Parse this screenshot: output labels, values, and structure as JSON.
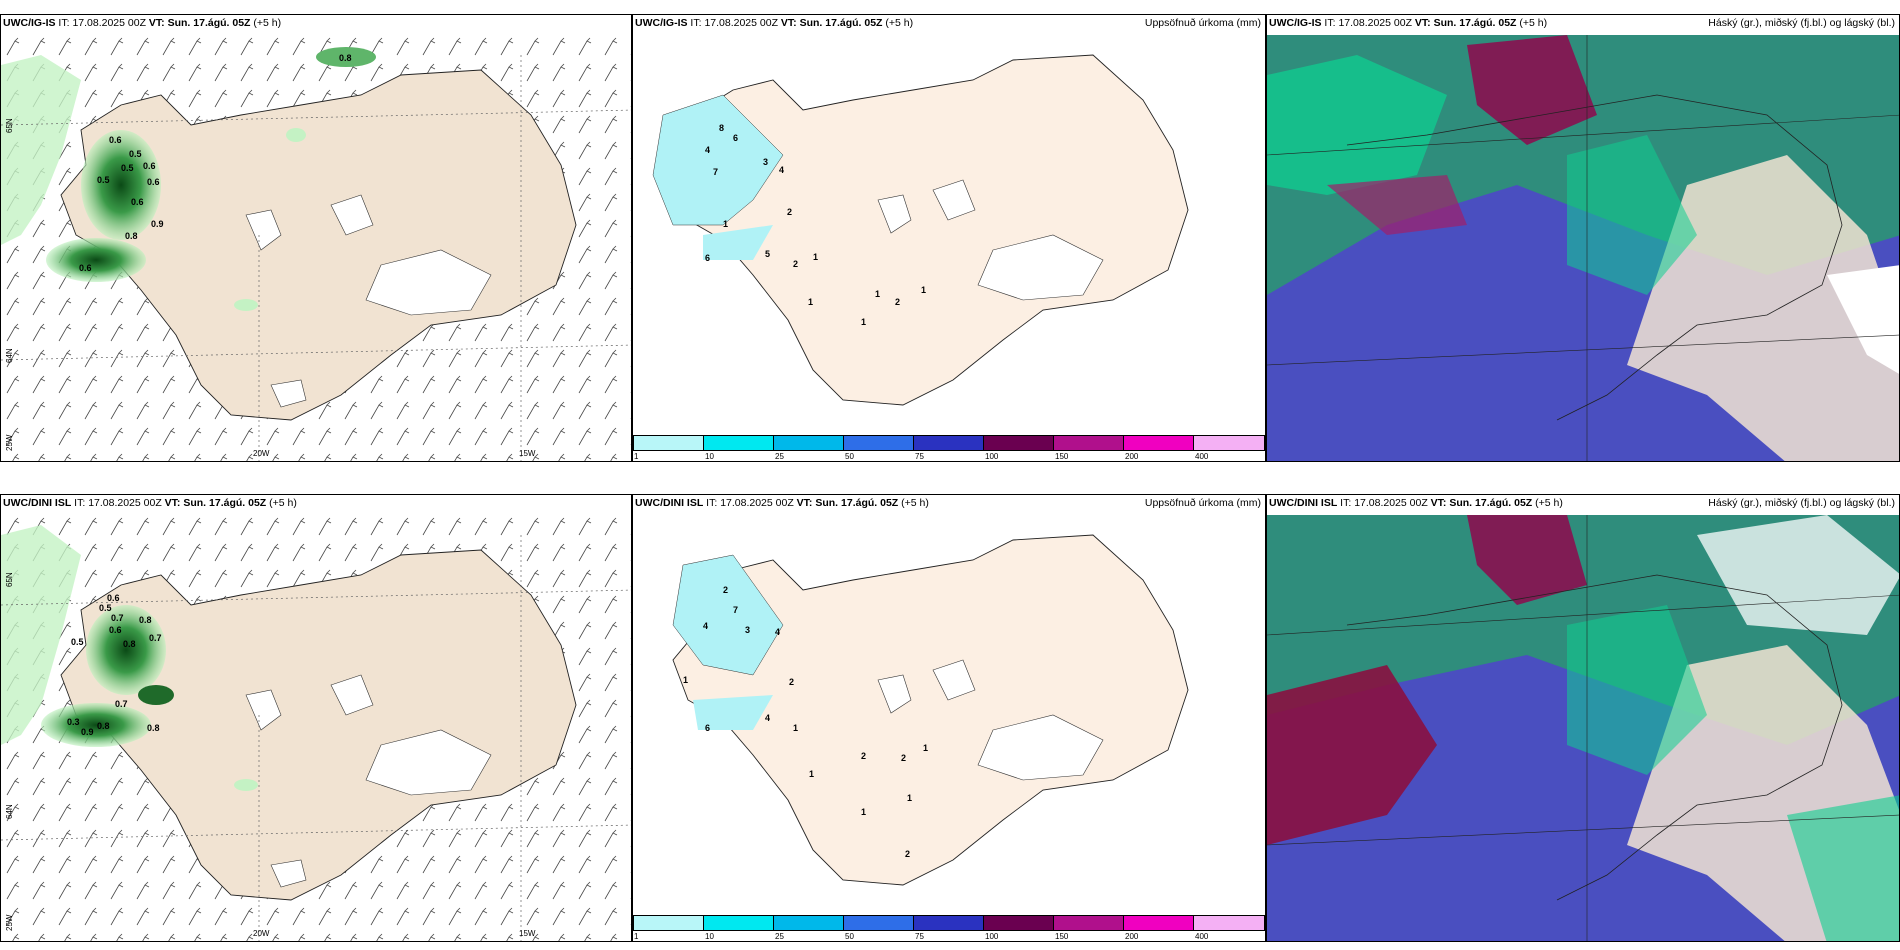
{
  "rows": [
    {
      "model": "UWC/IG-IS",
      "it_label": "IT:",
      "it_value": "17.08.2025 00Z",
      "vt_label": "VT:",
      "vt_value": "Sun. 17.ágú. 05Z",
      "lead": "(+5 h)",
      "precip_title": "Uppsöfnuð úrkoma (mm)",
      "cloud_title": "Háský (gr.), miðský (fj.bl.) og lágský (bl.)",
      "wind_values": [
        "0.8",
        "0.6",
        "0.5",
        "0.6",
        "0.5",
        "0.5",
        "0.6",
        "0.6",
        "0.9",
        "0.8",
        "0.6"
      ],
      "precip_values": [
        "4",
        "8",
        "6",
        "3",
        "7",
        "4",
        "2",
        "1",
        "6",
        "5",
        "2",
        "1",
        "1",
        "2",
        "1",
        "1",
        "1"
      ]
    },
    {
      "model": "UWC/DINI ISL",
      "it_label": "IT:",
      "it_value": "17.08.2025 00Z",
      "vt_label": "VT:",
      "vt_value": "Sun. 17.ágú. 05Z",
      "lead": "(+5 h)",
      "precip_title": "Uppsöfnuð úrkoma (mm)",
      "cloud_title": "Háský (gr.), miðský (fj.bl.) og lágský (bl.)",
      "wind_values": [
        "0.6",
        "0.5",
        "0.7",
        "0.6",
        "0.8",
        "0.5",
        "0.8",
        "0.7",
        "0.7",
        "0.8",
        "0.3",
        "0.9",
        "0.8"
      ],
      "precip_values": [
        "2",
        "7",
        "4",
        "4",
        "3",
        "1",
        "2",
        "4",
        "6",
        "1",
        "2",
        "2",
        "1",
        "1",
        "1",
        "2",
        "1"
      ]
    }
  ],
  "axis": {
    "lat_top": "65N",
    "lat_bottom": "64N",
    "lon_left": "25W",
    "lon_mid": "20W",
    "lon_right": "15W"
  },
  "colorbar": {
    "labels": [
      "1",
      "10",
      "25",
      "50",
      "75",
      "100",
      "150",
      "200",
      "400"
    ],
    "colors": [
      "#b8f6f8",
      "#00e8f0",
      "#00b8ea",
      "#2e6ee8",
      "#2a32c0",
      "#6a0050",
      "#b0108c",
      "#f000c0",
      "#f4b0f4"
    ]
  },
  "colors": {
    "land": "#f1e3d2",
    "land_precip": "#fcefe3",
    "precip_light": "#b0f2f6",
    "green_dark": "#0a5a1a",
    "green_light": "#b8f0b8",
    "cloud_high": "#2f8d7c",
    "cloud_mid": "#4a4fc0",
    "cloud_low": "#0fcf90"
  }
}
